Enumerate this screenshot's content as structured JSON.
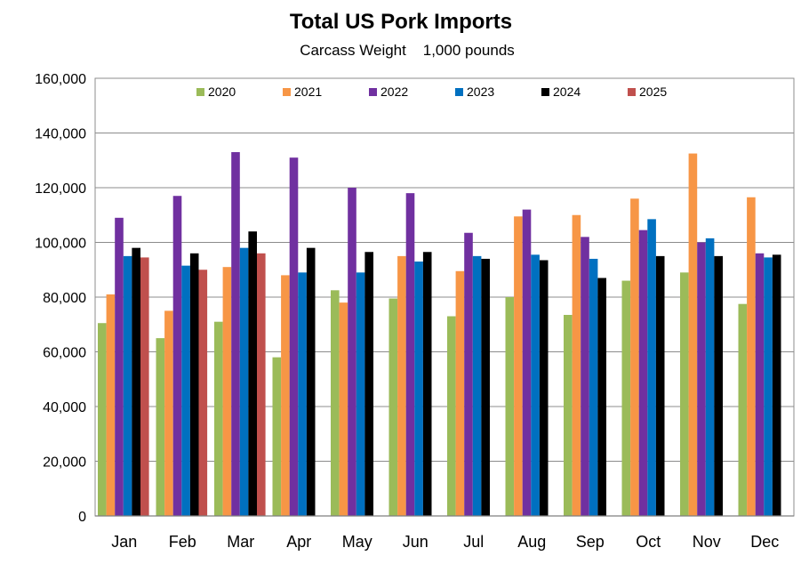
{
  "chart_data": {
    "type": "bar",
    "title": "Total US Pork Imports",
    "subtitle": "Carcass Weight    1,000 pounds",
    "xlabel": "",
    "ylabel": "",
    "ylim": [
      0,
      160000
    ],
    "yticks": [
      0,
      20000,
      40000,
      60000,
      80000,
      100000,
      120000,
      140000,
      160000
    ],
    "ytick_labels": [
      "0",
      "20,000",
      "40,000",
      "60,000",
      "80,000",
      "100,000",
      "120,000",
      "140,000",
      "160,000"
    ],
    "grid": true,
    "legend_position": "top",
    "categories": [
      "Jan",
      "Feb",
      "Mar",
      "Apr",
      "May",
      "Jun",
      "Jul",
      "Aug",
      "Sep",
      "Oct",
      "Nov",
      "Dec"
    ],
    "series": [
      {
        "name": "2020",
        "color": "#9BBB59",
        "values": [
          70500,
          65000,
          71000,
          58000,
          82500,
          79500,
          73000,
          80000,
          73500,
          86000,
          89000,
          77500
        ]
      },
      {
        "name": "2021",
        "color": "#F79646",
        "values": [
          81000,
          75000,
          91000,
          88000,
          78000,
          95000,
          89500,
          109500,
          110000,
          116000,
          132500,
          116500
        ]
      },
      {
        "name": "2022",
        "color": "#7030A0",
        "values": [
          109000,
          117000,
          133000,
          131000,
          120000,
          118000,
          103500,
          112000,
          102000,
          104500,
          100000,
          96000
        ]
      },
      {
        "name": "2023",
        "color": "#0070C0",
        "values": [
          95000,
          91500,
          98000,
          89000,
          89000,
          93000,
          95000,
          95500,
          94000,
          108500,
          101500,
          94500
        ]
      },
      {
        "name": "2024",
        "color": "#000000",
        "values": [
          98000,
          96000,
          104000,
          98000,
          96500,
          96500,
          94000,
          93500,
          87000,
          95000,
          95000,
          95500
        ]
      },
      {
        "name": "2025",
        "color": "#C0504D",
        "values": [
          94500,
          90000,
          96000,
          null,
          null,
          null,
          null,
          null,
          null,
          null,
          null,
          null
        ]
      }
    ]
  }
}
